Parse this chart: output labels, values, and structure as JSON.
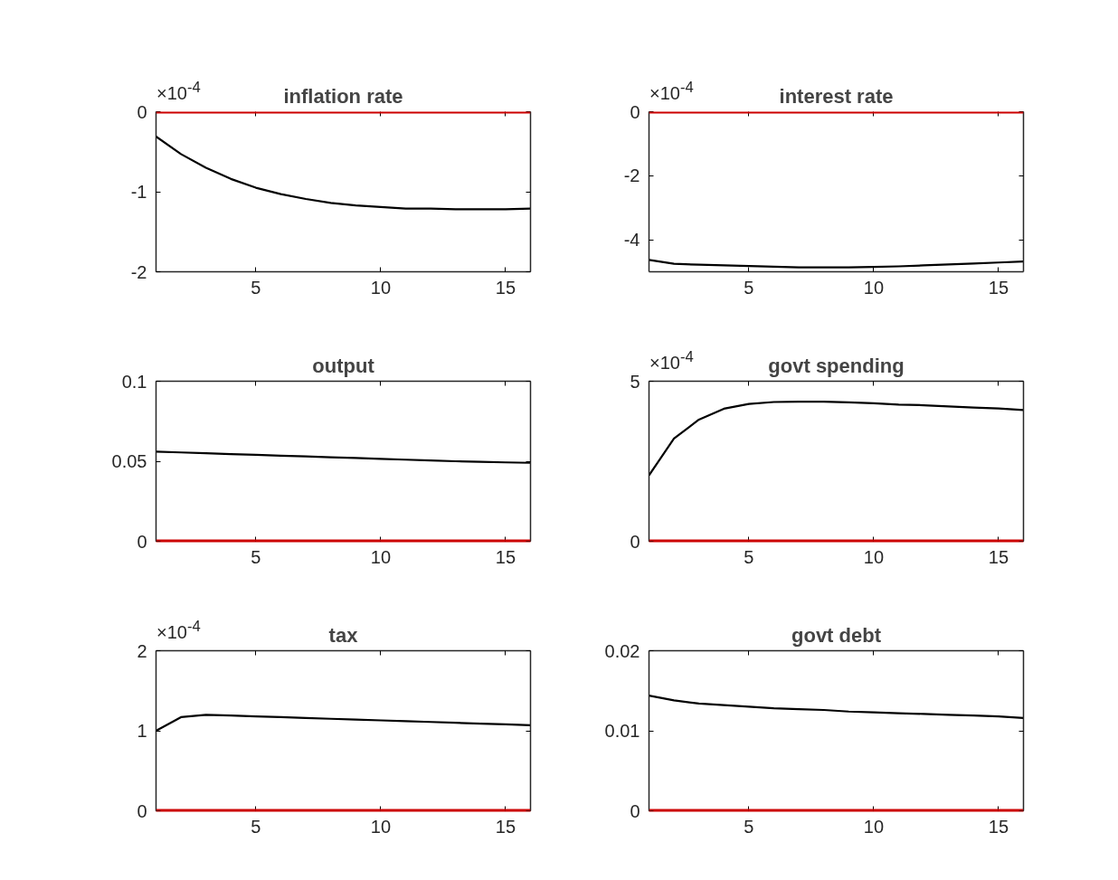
{
  "chart_data": [
    {
      "type": "line",
      "title": "inflation rate",
      "annotations": [
        "×10$^{-4}$"
      ],
      "x": [
        1,
        2,
        3,
        4,
        5,
        6,
        7,
        8,
        9,
        10,
        11,
        12,
        13,
        14,
        15,
        16
      ],
      "xlim": [
        1,
        16
      ],
      "xticks": [
        5,
        10,
        15
      ],
      "ylim": [
        -2,
        0
      ],
      "yticks": [
        -2,
        -1,
        0
      ],
      "grid": false,
      "line_style": "solid",
      "ref_lines": [
        {
          "axis": "y",
          "value": 0,
          "color": "#cc0000"
        }
      ],
      "series": [
        {
          "color": "#000000",
          "values": [
            -0.31,
            -0.53,
            -0.7,
            -0.84,
            -0.95,
            -1.03,
            -1.09,
            -1.14,
            -1.17,
            -1.19,
            -1.21,
            -1.21,
            -1.22,
            -1.22,
            -1.22,
            -1.21
          ]
        }
      ]
    },
    {
      "type": "line",
      "title": "interest rate",
      "annotations": [
        "×10$^{-4}$"
      ],
      "x": [
        1,
        2,
        3,
        4,
        5,
        6,
        7,
        8,
        9,
        10,
        11,
        12,
        13,
        14,
        15,
        16
      ],
      "xlim": [
        1,
        16
      ],
      "xticks": [
        5,
        10,
        15
      ],
      "ylim": [
        -5,
        0
      ],
      "yticks": [
        -4,
        -2,
        0
      ],
      "grid": false,
      "line_style": "solid",
      "ref_lines": [
        {
          "axis": "y",
          "value": 0,
          "color": "#cc0000"
        }
      ],
      "series": [
        {
          "color": "#000000",
          "values": [
            -4.63,
            -4.75,
            -4.78,
            -4.8,
            -4.82,
            -4.84,
            -4.86,
            -4.86,
            -4.86,
            -4.85,
            -4.83,
            -4.8,
            -4.77,
            -4.74,
            -4.71,
            -4.68
          ]
        }
      ]
    },
    {
      "type": "line",
      "title": "output",
      "x": [
        1,
        2,
        3,
        4,
        5,
        6,
        7,
        8,
        9,
        10,
        11,
        12,
        13,
        14,
        15,
        16
      ],
      "xlim": [
        1,
        16
      ],
      "xticks": [
        5,
        10,
        15
      ],
      "ylim": [
        0,
        0.1
      ],
      "yticks": [
        0,
        0.05,
        0.1
      ],
      "grid": false,
      "line_style": "solid",
      "ref_lines": [
        {
          "axis": "y",
          "value": 0,
          "color": "#cc0000"
        }
      ],
      "series": [
        {
          "color": "#000000",
          "values": [
            0.056,
            0.0555,
            0.055,
            0.0545,
            0.054,
            0.0535,
            0.053,
            0.0525,
            0.052,
            0.0515,
            0.051,
            0.0505,
            0.05,
            0.0497,
            0.0493,
            0.049
          ]
        }
      ]
    },
    {
      "type": "line",
      "title": "govt spending",
      "annotations": [
        "×10$^{-4}$"
      ],
      "x": [
        1,
        2,
        3,
        4,
        5,
        6,
        7,
        8,
        9,
        10,
        11,
        12,
        13,
        14,
        15,
        16
      ],
      "xlim": [
        1,
        16
      ],
      "xticks": [
        5,
        10,
        15
      ],
      "ylim": [
        0,
        5
      ],
      "yticks": [
        0,
        5
      ],
      "grid": false,
      "line_style": "solid",
      "ref_lines": [
        {
          "axis": "y",
          "value": 0,
          "color": "#cc0000"
        }
      ],
      "series": [
        {
          "color": "#000000",
          "values": [
            2.06,
            3.21,
            3.8,
            4.14,
            4.29,
            4.35,
            4.36,
            4.36,
            4.34,
            4.31,
            4.27,
            4.25,
            4.21,
            4.18,
            4.15,
            4.1
          ]
        }
      ]
    },
    {
      "type": "line",
      "title": "tax",
      "annotations": [
        "×10$^{-4}$"
      ],
      "x": [
        1,
        2,
        3,
        4,
        5,
        6,
        7,
        8,
        9,
        10,
        11,
        12,
        13,
        14,
        15,
        16
      ],
      "xlim": [
        1,
        16
      ],
      "xticks": [
        5,
        10,
        15
      ],
      "ylim": [
        0,
        2
      ],
      "yticks": [
        0,
        1,
        2
      ],
      "grid": false,
      "line_style": "solid",
      "ref_lines": [
        {
          "axis": "y",
          "value": 0,
          "color": "#cc0000"
        }
      ],
      "series": [
        {
          "color": "#000000",
          "values": [
            1.0,
            1.17,
            1.2,
            1.19,
            1.18,
            1.17,
            1.16,
            1.15,
            1.14,
            1.13,
            1.12,
            1.11,
            1.1,
            1.09,
            1.08,
            1.07
          ]
        }
      ]
    },
    {
      "type": "line",
      "title": "govt debt",
      "x": [
        1,
        2,
        3,
        4,
        5,
        6,
        7,
        8,
        9,
        10,
        11,
        12,
        13,
        14,
        15,
        16
      ],
      "xlim": [
        1,
        16
      ],
      "xticks": [
        5,
        10,
        15
      ],
      "ylim": [
        0,
        0.02
      ],
      "yticks": [
        0,
        0.01,
        0.02
      ],
      "grid": false,
      "line_style": "solid",
      "ref_lines": [
        {
          "axis": "y",
          "value": 0,
          "color": "#cc0000"
        }
      ],
      "series": [
        {
          "color": "#000000",
          "values": [
            0.0144,
            0.0138,
            0.0134,
            0.0132,
            0.013,
            0.0128,
            0.0127,
            0.0126,
            0.0124,
            0.0123,
            0.0122,
            0.0121,
            0.012,
            0.0119,
            0.0118,
            0.0116
          ]
        }
      ]
    }
  ]
}
